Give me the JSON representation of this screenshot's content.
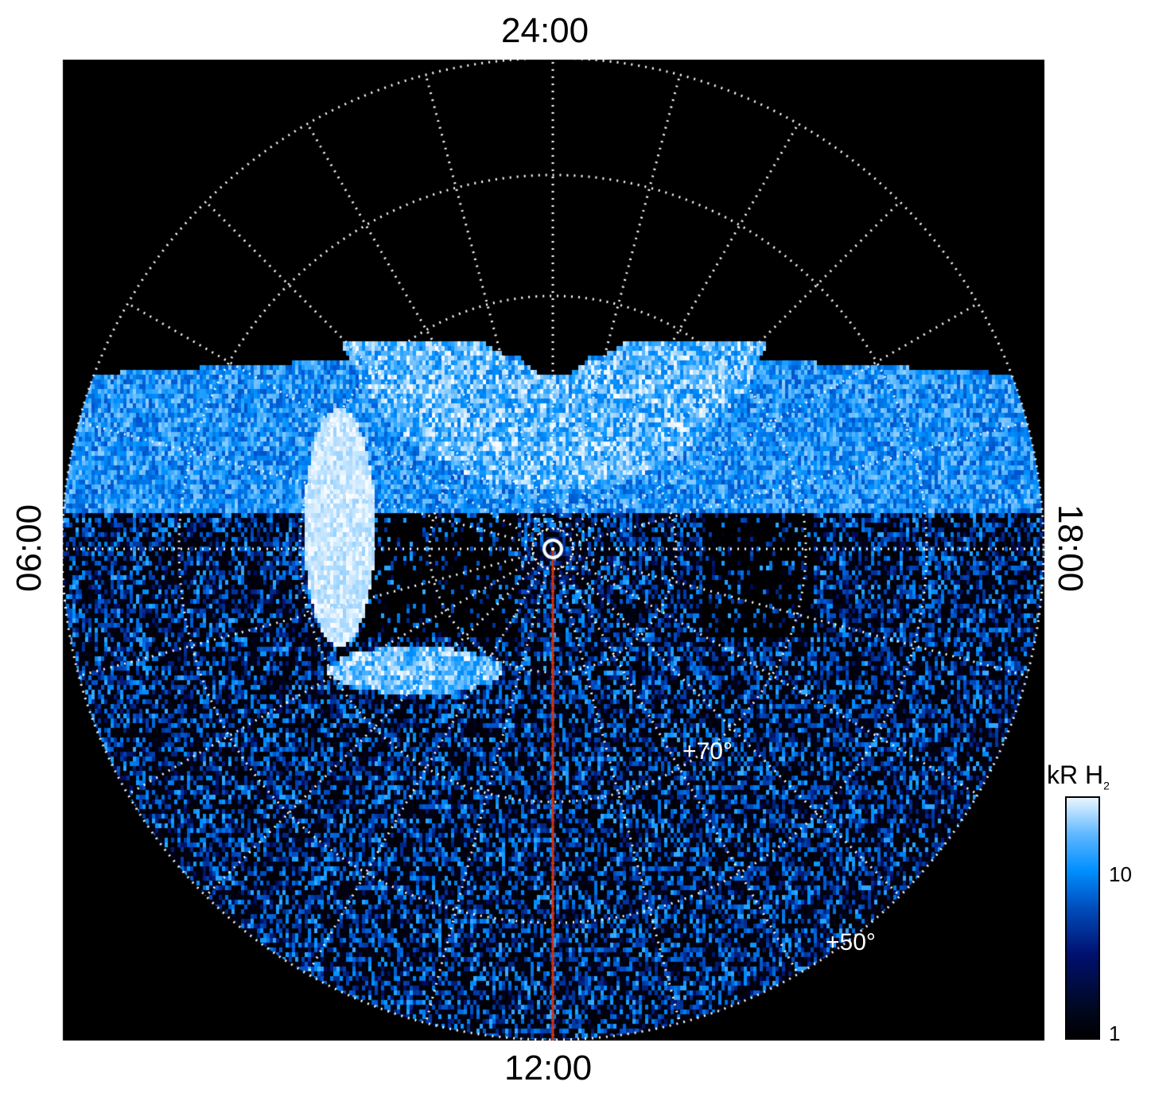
{
  "chart_data": {
    "type": "heatmap",
    "projection": "polar",
    "time_labels": {
      "top": "24:00",
      "bottom": "12:00",
      "left": "06:00",
      "right": "18:00"
    },
    "latitude_labels": [
      "+70°",
      "+50°"
    ],
    "meridian_step_hours": 1,
    "grid": true,
    "colorbar": {
      "label": "kR H",
      "label_subscript": "2",
      "scale": "log",
      "ticks": [
        "1",
        "10"
      ],
      "range": [
        1,
        25
      ],
      "colors": [
        "#000000",
        "#001070",
        "#0090ff",
        "#ffffff"
      ]
    },
    "overlay_line": {
      "from": "pole",
      "to": "12:00",
      "color": "#d03010"
    }
  }
}
